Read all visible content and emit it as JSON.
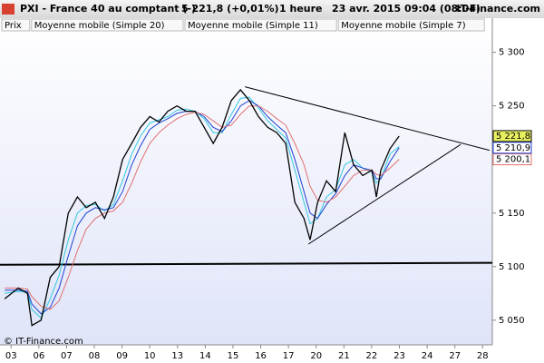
{
  "chart_data": {
    "type": "line",
    "title": "PXI - France 40 au comptant (-)",
    "quote": "5 221,8 (+0,01%)",
    "interval": "1 heure",
    "date": "23 avr. 2015 09:04 (08:04)",
    "source": "IT-Finance.com",
    "watermark": "© IT-Finance.com",
    "x": [
      -0.23,
      0.26,
      0.59,
      0.75,
      1.08,
      1.41,
      1.73,
      2.06,
      2.39,
      2.71,
      3.04,
      3.37,
      3.69,
      4.02,
      4.35,
      4.67,
      5.0,
      5.33,
      5.65,
      5.98,
      6.31,
      6.63,
      6.96,
      7.29,
      7.61,
      7.94,
      8.27,
      8.59,
      8.92,
      9.25,
      9.58,
      9.9,
      10.23,
      10.56,
      10.78,
      11.05,
      11.37,
      11.7,
      12.03,
      12.35,
      12.68,
      13.01,
      13.17,
      13.33,
      13.66,
      13.99
    ],
    "series": [
      {
        "name": "Prix",
        "color": "#000000",
        "last_label": "5 221,8",
        "label_fill": "#e8f060",
        "values": [
          5070,
          5080,
          5075,
          5045,
          5050,
          5090,
          5100,
          5150,
          5165,
          5155,
          5160,
          5145,
          5165,
          5200,
          5215,
          5230,
          5240,
          5235,
          5245,
          5250,
          5245,
          5245,
          5230,
          5215,
          5230,
          5255,
          5265,
          5255,
          5240,
          5230,
          5225,
          5215,
          5160,
          5145,
          5125,
          5160,
          5180,
          5170,
          5225,
          5195,
          5185,
          5190,
          5165,
          5190,
          5210,
          5221.8
        ]
      },
      {
        "name": "Moyenne mobile (Simple 20)",
        "color": "#e07070",
        "last_label": "5 200,1",
        "label_fill": "#ffffff",
        "values": [
          5080,
          5080,
          5079,
          5072,
          5063,
          5060,
          5068,
          5090,
          5115,
          5135,
          5145,
          5150,
          5152,
          5160,
          5178,
          5198,
          5215,
          5225,
          5232,
          5238,
          5242,
          5244,
          5242,
          5236,
          5230,
          5232,
          5242,
          5250,
          5250,
          5245,
          5238,
          5232,
          5215,
          5195,
          5175,
          5162,
          5160,
          5165,
          5175,
          5185,
          5190,
          5190,
          5186,
          5185,
          5192,
          5200.1
        ]
      },
      {
        "name": "Moyenne mobile (Simple 11)",
        "color": "#2040d0",
        "last_label": "5 210,9",
        "label_fill": "#ffffff",
        "values": [
          5078,
          5078,
          5077,
          5065,
          5056,
          5062,
          5080,
          5110,
          5138,
          5150,
          5155,
          5153,
          5155,
          5170,
          5195,
          5213,
          5228,
          5234,
          5238,
          5243,
          5245,
          5245,
          5240,
          5230,
          5226,
          5236,
          5250,
          5255,
          5250,
          5240,
          5232,
          5225,
          5200,
          5170,
          5150,
          5145,
          5158,
          5168,
          5185,
          5195,
          5192,
          5190,
          5182,
          5182,
          5198,
          5210.9
        ]
      },
      {
        "name": "Moyenne mobile (Simple 7)",
        "color": "#30c8e0",
        "values": [
          5075,
          5077,
          5076,
          5060,
          5052,
          5070,
          5092,
          5125,
          5150,
          5157,
          5158,
          5152,
          5158,
          5180,
          5205,
          5222,
          5234,
          5237,
          5240,
          5246,
          5247,
          5245,
          5238,
          5225,
          5225,
          5242,
          5257,
          5258,
          5248,
          5236,
          5228,
          5220,
          5190,
          5160,
          5140,
          5145,
          5165,
          5172,
          5195,
          5200,
          5192,
          5188,
          5178,
          5182,
          5205,
          5212
        ]
      }
    ],
    "trendlines": [
      {
        "x": [
          8.43,
          17.25
        ],
        "y": [
          5267.8,
          5208.5
        ]
      },
      {
        "x": [
          10.72,
          16.21
        ],
        "y": [
          5121,
          5214
        ]
      },
      {
        "x": [
          -0.4,
          17.35
        ],
        "y": [
          5101.7,
          5103.5
        ]
      }
    ],
    "xlim": [
      -0.4,
      17.35
    ],
    "ylim": [
      5027,
      5320
    ],
    "xticks": [
      {
        "value": 0,
        "label": "03"
      },
      {
        "value": 1,
        "label": "06"
      },
      {
        "value": 2,
        "label": "07"
      },
      {
        "value": 3,
        "label": "08"
      },
      {
        "value": 4,
        "label": "09"
      },
      {
        "value": 5,
        "label": "10"
      },
      {
        "value": 6,
        "label": "13"
      },
      {
        "value": 7,
        "label": "14"
      },
      {
        "value": 8,
        "label": "15"
      },
      {
        "value": 9,
        "label": "16"
      },
      {
        "value": 10,
        "label": "17"
      },
      {
        "value": 11,
        "label": "20"
      },
      {
        "value": 12,
        "label": "21"
      },
      {
        "value": 13,
        "label": "22"
      },
      {
        "value": 14,
        "label": "23"
      },
      {
        "value": 15,
        "label": "24"
      },
      {
        "value": 16,
        "label": "27"
      },
      {
        "value": 17,
        "label": "28"
      }
    ],
    "yticks": [
      {
        "value": 5050,
        "label": "5 050"
      },
      {
        "value": 5100,
        "label": "5 100"
      },
      {
        "value": 5150,
        "label": "5 150"
      },
      {
        "value": 5200,
        "label": "5 200"
      },
      {
        "value": 5250,
        "label": "5 250"
      },
      {
        "value": 5300,
        "label": "5 300"
      }
    ]
  }
}
